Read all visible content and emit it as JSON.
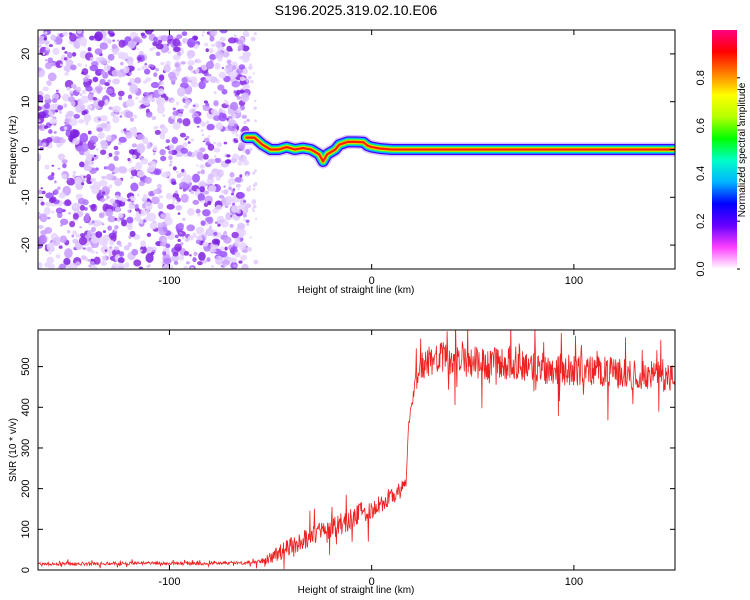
{
  "title": "S196.2025.319.02.10.E06",
  "chart_data": [
    {
      "type": "heatmap",
      "name": "spectrogram",
      "xlabel": "Height of straight line (km)",
      "ylabel": "Frequency (Hz)",
      "xlim": [
        -165,
        150
      ],
      "ylim": [
        -25,
        25
      ],
      "xticks": [
        -100,
        0,
        100
      ],
      "yticks": [
        -20,
        -10,
        0,
        10,
        20
      ],
      "xtick_labels": [
        "-100",
        "0",
        "100"
      ],
      "ytick_labels": [
        "-20",
        "-10",
        "0",
        "10",
        "20"
      ],
      "colorbar": {
        "label": "Normalized spectral amplitude",
        "range": [
          0,
          1
        ],
        "ticks": [
          0.0,
          0.2,
          0.4,
          0.6,
          0.8
        ],
        "tick_labels": [
          "0.0",
          "0.2",
          "0.4",
          "0.6",
          "0.8"
        ],
        "colormap": [
          "#ffffff",
          "#ff40ff",
          "#6600ff",
          "#0000ff",
          "#00b4ff",
          "#00ffc8",
          "#00ff00",
          "#b4ff00",
          "#ffff00",
          "#ff8000",
          "#ff0000",
          "#ff0080"
        ]
      },
      "noise_region_x": [
        -165,
        -63
      ],
      "track": {
        "x": [
          -62,
          -58,
          -54,
          -50,
          -46,
          -42,
          -38,
          -34,
          -30,
          -26,
          -24,
          -22,
          -18,
          -16,
          -12,
          -8,
          -4,
          -2,
          0,
          4,
          10,
          20,
          50,
          100,
          150
        ],
        "freq": [
          2.5,
          2.5,
          1.0,
          0.0,
          0.0,
          0.5,
          0.0,
          0.3,
          0.0,
          -1.0,
          -2.5,
          -1.0,
          0.0,
          1.0,
          1.6,
          1.6,
          1.5,
          0.8,
          0.5,
          0.2,
          0.0,
          0.0,
          0.0,
          0.0,
          0.0
        ]
      }
    },
    {
      "type": "line",
      "name": "snr",
      "xlabel": "Height of straight line (km)",
      "ylabel": "SNR (10 * v/v)",
      "xlim": [
        -165,
        150
      ],
      "ylim": [
        0,
        590
      ],
      "xticks": [
        -100,
        0,
        100
      ],
      "yticks": [
        0,
        100,
        200,
        300,
        400,
        500
      ],
      "xtick_labels": [
        "-100",
        "0",
        "100"
      ],
      "ytick_labels": [
        "0",
        "100",
        "200",
        "300",
        "400",
        "500"
      ],
      "color": "#ee2020",
      "x": [
        -165,
        -150,
        -130,
        -110,
        -90,
        -70,
        -60,
        -55,
        -50,
        -45,
        -40,
        -35,
        -30,
        -25,
        -20,
        -15,
        -10,
        -5,
        0,
        5,
        10,
        15,
        17,
        18,
        19,
        20,
        22,
        25,
        30,
        40,
        50,
        60,
        70,
        80,
        90,
        100,
        110,
        120,
        130,
        140,
        150
      ],
      "y": [
        15,
        15,
        16,
        17,
        16,
        17,
        19,
        22,
        30,
        45,
        60,
        70,
        85,
        95,
        105,
        115,
        125,
        140,
        150,
        165,
        180,
        200,
        215,
        330,
        380,
        420,
        470,
        500,
        520,
        520,
        510,
        505,
        510,
        500,
        495,
        490,
        490,
        485,
        480,
        478,
        470
      ],
      "noise": [
        4,
        4,
        4,
        4,
        4,
        4,
        5,
        6,
        14,
        20,
        22,
        24,
        25,
        26,
        27,
        28,
        28,
        27,
        26,
        25,
        24,
        20,
        15,
        15,
        15,
        25,
        30,
        35,
        40,
        40,
        40,
        42,
        42,
        40,
        40,
        38,
        38,
        38,
        36,
        36,
        36
      ]
    }
  ]
}
